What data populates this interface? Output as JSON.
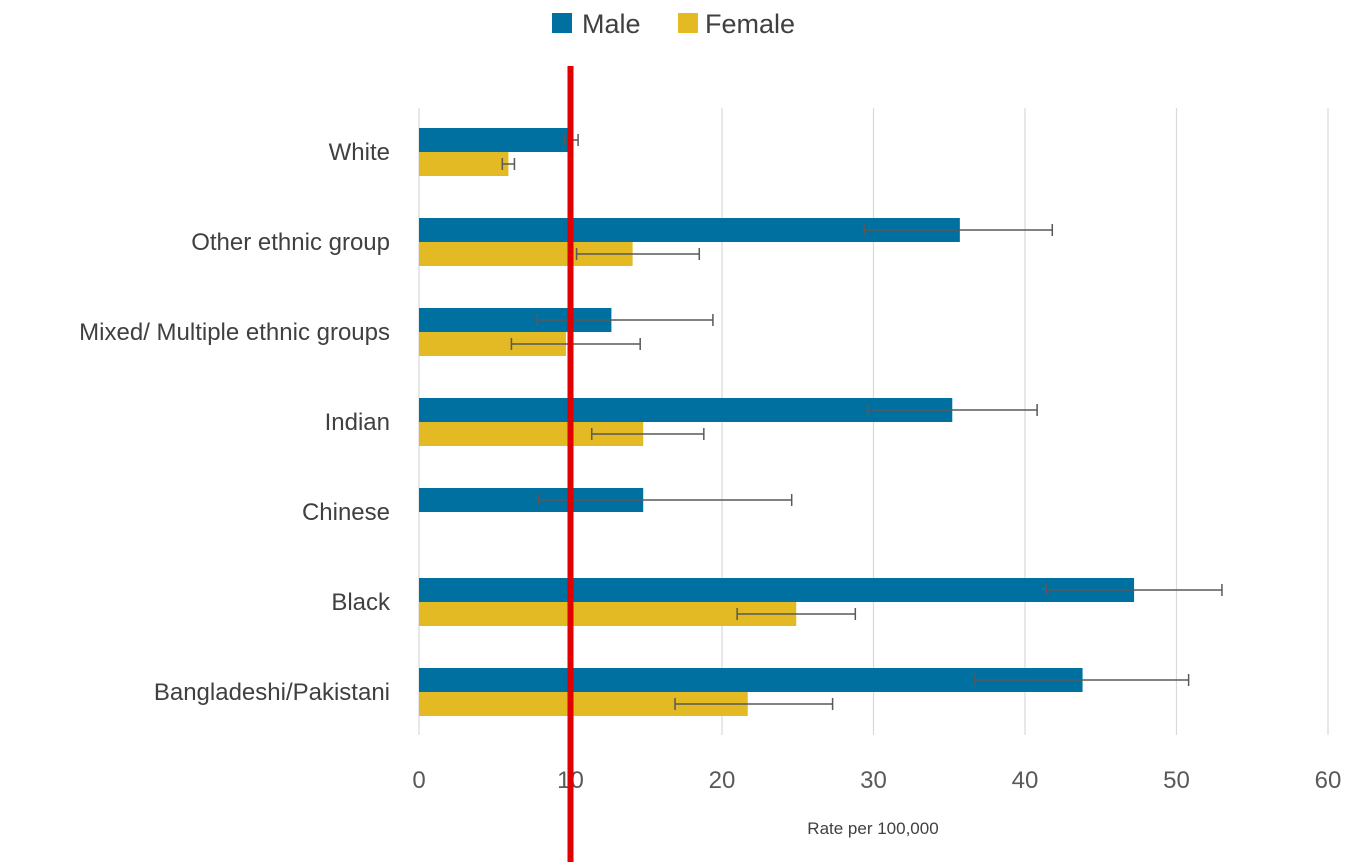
{
  "colors": {
    "male": "#0070a0",
    "female": "#e3b924",
    "grid": "#d9d9d9",
    "error_bar": "#595959",
    "reference_line": "#e10000"
  },
  "legend": {
    "placement": "top-center",
    "items": [
      {
        "label": "Male",
        "color": "#0070a0"
      },
      {
        "label": "Female",
        "color": "#e3b924"
      }
    ]
  },
  "chart_data": {
    "type": "bar",
    "orientation": "horizontal",
    "title": "",
    "xlabel": "Rate per 100,000",
    "ylabel": "",
    "xlim": [
      0,
      60
    ],
    "x_ticks": [
      0,
      10,
      20,
      30,
      40,
      50,
      60
    ],
    "grid": "vertical",
    "categories": [
      "White",
      "Other ethnic group",
      "Mixed/ Multiple ethnic groups",
      "Indian",
      "Chinese",
      "Black",
      "Bangladeshi/Pakistani"
    ],
    "series": [
      {
        "name": "Male",
        "values": [
          10.0,
          35.7,
          12.7,
          35.2,
          14.8,
          47.2,
          43.8
        ],
        "error_low": [
          9.6,
          29.4,
          7.8,
          29.6,
          7.9,
          41.4,
          36.7
        ],
        "error_high": [
          10.5,
          41.8,
          19.4,
          40.8,
          24.6,
          53.0,
          50.8
        ]
      },
      {
        "name": "Female",
        "values": [
          5.9,
          14.1,
          9.7,
          14.8,
          null,
          24.9,
          21.7
        ],
        "error_low": [
          5.5,
          10.4,
          6.1,
          11.4,
          null,
          21.0,
          16.9
        ],
        "error_high": [
          6.3,
          18.5,
          14.6,
          18.8,
          null,
          28.8,
          27.3
        ]
      }
    ],
    "reference_line": {
      "x": 10,
      "color": "#e10000"
    }
  }
}
